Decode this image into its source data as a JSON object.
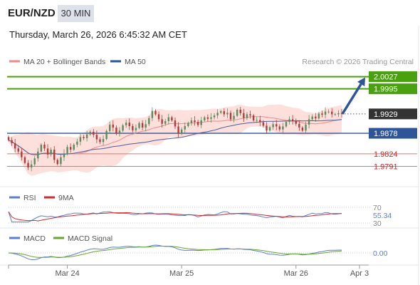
{
  "header": {
    "pair": "EUR/NZD",
    "timeframe": "30 MIN",
    "datetime": "Thursday, March 26, 2026 6:45:32 AM CET"
  },
  "legend": {
    "ma20": "MA 20 + Bollinger Bands",
    "ma50": "MA 50",
    "rsi": "RSI",
    "rsi_ma": "9MA",
    "macd": "MACD",
    "macd_signal": "MACD Signal",
    "copyright": "Research © 2026 Trading Central"
  },
  "colors": {
    "green": "#4aa10f",
    "blue": "#2e5597",
    "red_line": "#e57373",
    "band": "#fde0dc",
    "candle_up": "#5d8a5d",
    "candle_down": "#b23a3a",
    "ma20": "#ef8a8a",
    "ma50": "#4a5c99",
    "rsi": "#5b7fd0",
    "rsi_ma": "#d12a2a",
    "macd": "#5b7fd0",
    "macd_signal": "#67a630",
    "current_price_bg": "#333333"
  },
  "chart_data": [
    {
      "type": "candlestick",
      "xlabels": [
        "Mar 24",
        "Mar 25",
        "Mar 26",
        "Apr 3"
      ],
      "ylim": [
        1.9745,
        2.0045
      ],
      "levels": [
        {
          "value": 2.0027,
          "label": "2.0027",
          "kind": "resistance",
          "color": "#4aa10f"
        },
        {
          "value": 1.9995,
          "label": "1.9995",
          "kind": "resistance",
          "color": "#4aa10f"
        },
        {
          "value": 1.9878,
          "label": "1.9878",
          "kind": "pivot",
          "color": "#2e5597"
        },
        {
          "value": 1.9824,
          "label": "1.9824",
          "kind": "support",
          "color": "#e57373"
        },
        {
          "value": 1.9791,
          "label": "1.9791",
          "kind": "support",
          "color": "#e57373"
        }
      ],
      "current_price": {
        "value": 1.9929,
        "label": "1.9929"
      },
      "forecast_arrow": {
        "from_value": 1.9929,
        "to_value": 2.0027
      },
      "close": [
        1.986,
        1.9852,
        1.9838,
        1.983,
        1.9815,
        1.98,
        1.9788,
        1.9796,
        1.9812,
        1.983,
        1.9848,
        1.9838,
        1.9822,
        1.9835,
        1.9808,
        1.9797,
        1.9815,
        1.9825,
        1.9842,
        1.9835,
        1.9848,
        1.9856,
        1.9868,
        1.9865,
        1.9875,
        1.9882,
        1.9874,
        1.9862,
        1.9855,
        1.9863,
        1.9884,
        1.9901,
        1.9893,
        1.9878,
        1.9885,
        1.9899,
        1.9906,
        1.9897,
        1.9886,
        1.9892,
        1.9905,
        1.9893,
        1.9902,
        1.9918,
        1.9937,
        1.9928,
        1.9915,
        1.9903,
        1.991,
        1.992,
        1.9912,
        1.9896,
        1.9878,
        1.9888,
        1.9897,
        1.9905,
        1.9912,
        1.9908,
        1.99,
        1.9912,
        1.992,
        1.9916,
        1.992,
        1.9925,
        1.9932,
        1.9936,
        1.9928,
        1.9932,
        1.9915,
        1.9924,
        1.994,
        1.9931,
        1.9918,
        1.9928,
        1.9925,
        1.9912,
        1.9913,
        1.9907,
        1.9898,
        1.9885,
        1.9894,
        1.9902,
        1.9896,
        1.9888,
        1.9896,
        1.9908,
        1.9915,
        1.9911,
        1.9903,
        1.9893,
        1.9885,
        1.9901,
        1.9915,
        1.9922,
        1.9917,
        1.993,
        1.9927,
        1.9935,
        1.9935,
        1.9928,
        1.9928,
        1.9931,
        1.9929
      ]
    },
    {
      "type": "line",
      "name": "RSI",
      "ylim": [
        30,
        70
      ],
      "ticks": [
        "70",
        "30"
      ],
      "last_value": "55.34"
    },
    {
      "type": "line",
      "name": "MACD",
      "last_value": "0.00"
    }
  ]
}
